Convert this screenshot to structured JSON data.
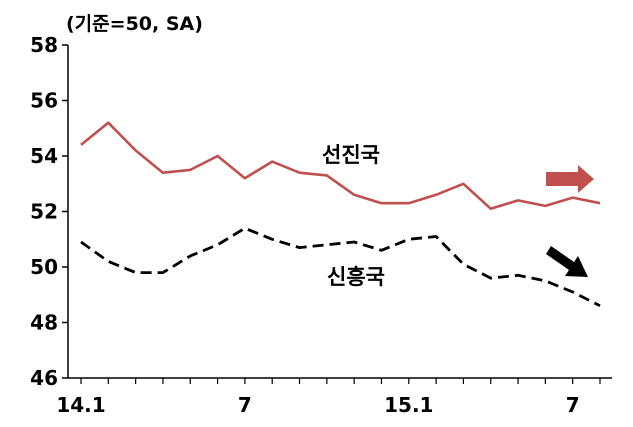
{
  "chart_data": {
    "type": "line",
    "unit_label": "(기준=50, SA)",
    "ylim": [
      46,
      58
    ],
    "yticks": [
      46,
      48,
      50,
      52,
      54,
      56,
      58
    ],
    "grid": false,
    "x_tick_labels": [
      {
        "label": "14.1",
        "index": 0
      },
      {
        "label": "7",
        "index": 6
      },
      {
        "label": "15.1",
        "index": 12
      },
      {
        "label": "7",
        "index": 18
      }
    ],
    "x_count": 20,
    "series": [
      {
        "name": "선진국",
        "color": "#c0504d",
        "style": "solid",
        "values": [
          54.4,
          55.2,
          54.2,
          53.4,
          53.5,
          54.0,
          53.2,
          53.8,
          53.4,
          53.3,
          52.6,
          52.3,
          52.3,
          52.6,
          53.0,
          52.1,
          52.4,
          52.2,
          52.5,
          52.3
        ],
        "trend_arrow": "right"
      },
      {
        "name": "신흥국",
        "color": "#000000",
        "style": "dashed",
        "values": [
          50.9,
          50.2,
          49.8,
          49.8,
          50.4,
          50.8,
          51.4,
          51.0,
          50.7,
          50.8,
          50.9,
          50.6,
          51.0,
          51.1,
          50.1,
          49.6,
          49.7,
          49.5,
          49.1,
          48.6
        ],
        "trend_arrow": "down-right"
      }
    ]
  }
}
